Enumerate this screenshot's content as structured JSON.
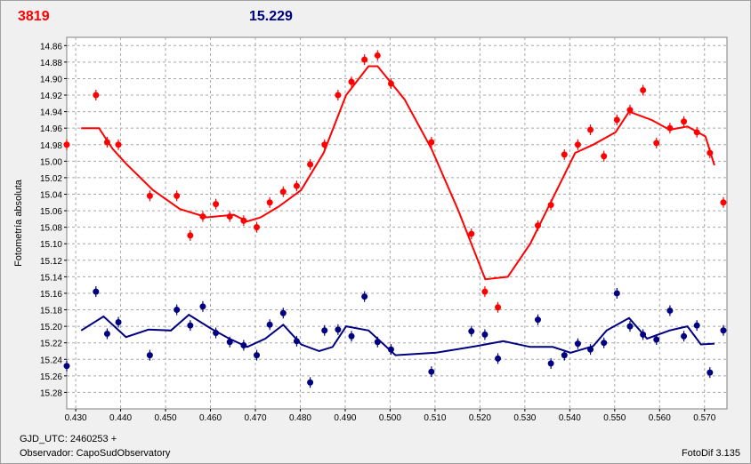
{
  "header": {
    "star_id": "3819",
    "star_mag": "15.229"
  },
  "footer": {
    "gjd_label": "GJD_UTC: 2460253 +",
    "observer_label": "Observador: CapoSudObservatory",
    "software_label": "FotoDif 3.135"
  },
  "colors": {
    "red_series": "#ff0000",
    "blue_series": "#000080",
    "star_id": "#ff0000",
    "star_mag": "#000080",
    "grid": "#a8a8a8"
  },
  "chart_data": {
    "type": "scatter",
    "ylabel": "Fotometría absoluta",
    "xlabel": "",
    "xlim": [
      0.428,
      0.575
    ],
    "ylim": [
      15.3,
      14.85
    ],
    "y_inverted": true,
    "grid": true,
    "x_ticks": [
      "0.430",
      "0.440",
      "0.450",
      "0.460",
      "0.470",
      "0.480",
      "0.490",
      "0.500",
      "0.510",
      "0.520",
      "0.530",
      "0.540",
      "0.550",
      "0.560",
      "0.570"
    ],
    "y_ticks": [
      "14.86",
      "14.88",
      "14.90",
      "14.92",
      "14.94",
      "14.96",
      "14.98",
      "15.00",
      "15.02",
      "15.04",
      "15.06",
      "15.08",
      "15.10",
      "15.12",
      "15.14",
      "15.16",
      "15.18",
      "15.20",
      "15.22",
      "15.24",
      "15.26",
      "15.28"
    ],
    "series": [
      {
        "color": "red",
        "points": [
          [
            0.428,
            14.98
          ],
          [
            0.4345,
            14.92
          ],
          [
            0.437,
            14.977
          ],
          [
            0.4395,
            14.98
          ],
          [
            0.4465,
            15.042
          ],
          [
            0.4525,
            15.042
          ],
          [
            0.4555,
            15.09
          ],
          [
            0.4583,
            15.067
          ],
          [
            0.4612,
            15.052
          ],
          [
            0.4643,
            15.067
          ],
          [
            0.4674,
            15.072
          ],
          [
            0.4703,
            15.08
          ],
          [
            0.4732,
            15.05
          ],
          [
            0.4762,
            15.037
          ],
          [
            0.4792,
            15.03
          ],
          [
            0.4822,
            15.004
          ],
          [
            0.4854,
            14.98
          ],
          [
            0.4884,
            14.92
          ],
          [
            0.4914,
            14.904
          ],
          [
            0.4943,
            14.877
          ],
          [
            0.4972,
            14.872
          ],
          [
            0.5002,
            14.906
          ],
          [
            0.5092,
            14.977
          ],
          [
            0.5181,
            15.088
          ],
          [
            0.5211,
            15.158
          ],
          [
            0.524,
            15.177
          ],
          [
            0.5329,
            15.078
          ],
          [
            0.5358,
            15.053
          ],
          [
            0.5388,
            14.992
          ],
          [
            0.5418,
            14.98
          ],
          [
            0.5446,
            14.962
          ],
          [
            0.5476,
            14.994
          ],
          [
            0.5505,
            14.95
          ],
          [
            0.5534,
            14.938
          ],
          [
            0.5563,
            14.914
          ],
          [
            0.5593,
            14.978
          ],
          [
            0.5623,
            14.96
          ],
          [
            0.5654,
            14.952
          ],
          [
            0.5683,
            14.965
          ],
          [
            0.5712,
            14.99
          ],
          [
            0.5742,
            15.05
          ]
        ],
        "fit": [
          [
            0.4312,
            14.96
          ],
          [
            0.4352,
            14.96
          ],
          [
            0.4382,
            14.985
          ],
          [
            0.4412,
            15.003
          ],
          [
            0.4472,
            15.035
          ],
          [
            0.4532,
            15.058
          ],
          [
            0.4592,
            15.068
          ],
          [
            0.4652,
            15.065
          ],
          [
            0.4682,
            15.073
          ],
          [
            0.4712,
            15.068
          ],
          [
            0.4752,
            15.055
          ],
          [
            0.4802,
            15.035
          ],
          [
            0.4852,
            14.99
          ],
          [
            0.4902,
            14.92
          ],
          [
            0.4952,
            14.885
          ],
          [
            0.4972,
            14.885
          ],
          [
            0.5032,
            14.925
          ],
          [
            0.5092,
            14.985
          ],
          [
            0.5152,
            15.06
          ],
          [
            0.5212,
            15.143
          ],
          [
            0.5262,
            15.14
          ],
          [
            0.5312,
            15.1
          ],
          [
            0.5362,
            15.045
          ],
          [
            0.5412,
            14.99
          ],
          [
            0.5452,
            14.98
          ],
          [
            0.5502,
            14.965
          ],
          [
            0.5532,
            14.94
          ],
          [
            0.5582,
            14.95
          ],
          [
            0.5622,
            14.962
          ],
          [
            0.5662,
            14.958
          ],
          [
            0.5702,
            14.97
          ],
          [
            0.5722,
            15.005
          ]
        ]
      },
      {
        "color": "blue",
        "points": [
          [
            0.428,
            15.248
          ],
          [
            0.4345,
            15.158
          ],
          [
            0.437,
            15.209
          ],
          [
            0.4395,
            15.195
          ],
          [
            0.4465,
            15.235
          ],
          [
            0.4525,
            15.18
          ],
          [
            0.4555,
            15.199
          ],
          [
            0.4583,
            15.176
          ],
          [
            0.4612,
            15.208
          ],
          [
            0.4643,
            15.219
          ],
          [
            0.4674,
            15.223
          ],
          [
            0.4703,
            15.235
          ],
          [
            0.4732,
            15.198
          ],
          [
            0.4762,
            15.184
          ],
          [
            0.4792,
            15.218
          ],
          [
            0.4822,
            15.268
          ],
          [
            0.4854,
            15.205
          ],
          [
            0.4884,
            15.204
          ],
          [
            0.4914,
            15.212
          ],
          [
            0.4943,
            15.164
          ],
          [
            0.4972,
            15.219
          ],
          [
            0.5002,
            15.228
          ],
          [
            0.5092,
            15.255
          ],
          [
            0.5181,
            15.206
          ],
          [
            0.5211,
            15.21
          ],
          [
            0.524,
            15.239
          ],
          [
            0.5329,
            15.192
          ],
          [
            0.5358,
            15.245
          ],
          [
            0.5388,
            15.235
          ],
          [
            0.5418,
            15.221
          ],
          [
            0.5446,
            15.228
          ],
          [
            0.5476,
            15.22
          ],
          [
            0.5505,
            15.16
          ],
          [
            0.5534,
            15.2
          ],
          [
            0.5563,
            15.21
          ],
          [
            0.5593,
            15.216
          ],
          [
            0.5623,
            15.181
          ],
          [
            0.5654,
            15.212
          ],
          [
            0.5683,
            15.199
          ],
          [
            0.5712,
            15.256
          ],
          [
            0.5742,
            15.205
          ]
        ],
        "fit": [
          [
            0.4312,
            15.205
          ],
          [
            0.4362,
            15.188
          ],
          [
            0.4412,
            15.213
          ],
          [
            0.4462,
            15.204
          ],
          [
            0.4512,
            15.205
          ],
          [
            0.4552,
            15.186
          ],
          [
            0.4602,
            15.203
          ],
          [
            0.4642,
            15.215
          ],
          [
            0.4682,
            15.225
          ],
          [
            0.4722,
            15.215
          ],
          [
            0.4762,
            15.198
          ],
          [
            0.4802,
            15.222
          ],
          [
            0.4842,
            15.23
          ],
          [
            0.4872,
            15.225
          ],
          [
            0.4902,
            15.2
          ],
          [
            0.4952,
            15.205
          ],
          [
            0.5012,
            15.235
          ],
          [
            0.5102,
            15.232
          ],
          [
            0.5192,
            15.224
          ],
          [
            0.5252,
            15.218
          ],
          [
            0.5312,
            15.225
          ],
          [
            0.5362,
            15.225
          ],
          [
            0.5402,
            15.232
          ],
          [
            0.5452,
            15.224
          ],
          [
            0.5482,
            15.205
          ],
          [
            0.5532,
            15.19
          ],
          [
            0.5572,
            15.215
          ],
          [
            0.5622,
            15.205
          ],
          [
            0.5662,
            15.2
          ],
          [
            0.5692,
            15.222
          ],
          [
            0.5722,
            15.221
          ]
        ]
      }
    ]
  }
}
